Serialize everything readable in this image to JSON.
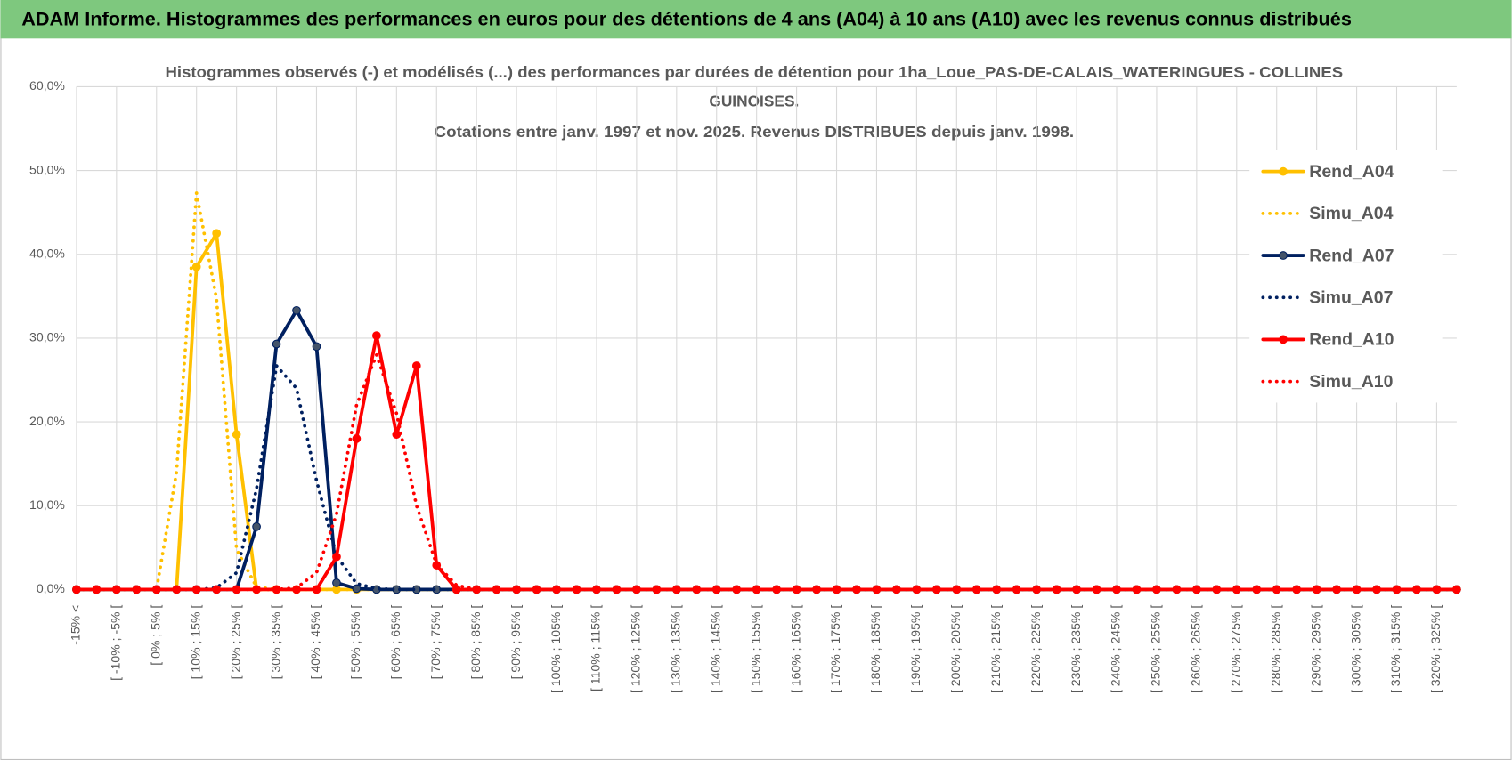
{
  "header": {
    "title": "ADAM Informe. Histogrammes des performances en euros pour des détentions de 4 ans (A04) à 10 ans (A10) avec les revenus connus distribués"
  },
  "chart_data": {
    "type": "line",
    "title": [
      "Histogrammes observés (-) et modélisés (...) des performances par durées de détention pour 1ha_Loue_PAS-DE-CALAIS_WATERINGUES - COLLINES",
      "GUINOISES."
    ],
    "subtitle": "Cotations entre janv. 1997 et nov. 2025. Revenus DISTRIBUES depuis janv. 1998.",
    "categories": [
      "-15% <",
      null,
      "[ -10% ; -5% [",
      null,
      "[ 0% ; 5% [",
      null,
      "[ 10% ; 15% [",
      null,
      "[ 20% ; 25% [",
      null,
      "[ 30% ; 35% [",
      null,
      "[ 40% ; 45% [",
      null,
      "[ 50% ; 55% [",
      null,
      "[ 60% ; 65% [",
      null,
      "[ 70% ; 75% [",
      null,
      "[ 80% ; 85% [",
      null,
      "[ 90% ; 95% [",
      null,
      "[ 100% ; 105% [",
      null,
      "[ 110% ; 115% [",
      null,
      "[ 120% ; 125% [",
      null,
      "[ 130% ; 135% [",
      null,
      "[ 140% ; 145% [",
      null,
      "[ 150% ; 155% [",
      null,
      "[ 160% ; 165% [",
      null,
      "[ 170% ; 175% [",
      null,
      "[ 180% ; 185% [",
      null,
      "[ 190% ; 195% [",
      null,
      "[ 200% ; 205% [",
      null,
      "[ 210% ; 215% [",
      null,
      "[ 220% ; 225% [",
      null,
      "[ 230% ; 235% [",
      null,
      "[ 240% ; 245% [",
      null,
      "[ 250% ; 255% [",
      null,
      "[ 260% ; 265% [",
      null,
      "[ 270% ; 275% [",
      null,
      "[ 280% ; 285% [",
      null,
      "[ 290% ; 295% [",
      null,
      "[ 300% ; 305% [",
      null,
      "[ 310% ; 315% [",
      null,
      "[ 320% ; 325% [",
      null
    ],
    "series": [
      {
        "name": "Rend_A04",
        "color": "#FFC000",
        "dashed": false,
        "markers": true,
        "values": [
          0,
          0,
          0,
          0,
          0,
          0,
          38.5,
          42.5,
          18.5,
          0,
          0,
          0,
          0,
          0,
          0,
          0,
          0,
          0,
          0,
          0,
          0,
          0,
          0,
          0,
          0,
          0,
          0,
          0,
          0,
          0,
          0,
          0,
          0,
          0,
          0,
          0,
          0,
          0,
          0,
          0,
          0,
          0,
          0,
          0,
          0,
          0,
          0,
          0,
          0,
          0,
          0,
          0,
          0,
          0,
          0,
          0,
          0,
          0,
          0,
          0,
          0,
          0,
          0,
          0,
          0,
          0,
          0,
          0,
          0,
          0
        ]
      },
      {
        "name": "Simu_A04",
        "color": "#FFC000",
        "dashed": true,
        "markers": false,
        "values": [
          0,
          0,
          0,
          0,
          0,
          14,
          47.3,
          34.7,
          4.8,
          0.3,
          0,
          0,
          0,
          0,
          0,
          0,
          0,
          0,
          0,
          0,
          0,
          0,
          0,
          0,
          0,
          0,
          0,
          0,
          0,
          0,
          0,
          0,
          0,
          0,
          0,
          0,
          0,
          0,
          0,
          0,
          0,
          0,
          0,
          0,
          0,
          0,
          0,
          0,
          0,
          0,
          0,
          0,
          0,
          0,
          0,
          0,
          0,
          0,
          0,
          0,
          0,
          0,
          0,
          0,
          0,
          0,
          0,
          0,
          0,
          0
        ]
      },
      {
        "name": "Rend_A07",
        "color": "#002060",
        "dashed": false,
        "markers": true,
        "values": [
          0,
          0,
          0,
          0,
          0,
          0,
          0,
          0,
          0,
          7.5,
          29.3,
          33.3,
          29,
          0.8,
          0.1,
          0,
          0,
          0,
          0,
          0,
          0,
          0,
          0,
          0,
          0,
          0,
          0,
          0,
          0,
          0,
          0,
          0,
          0,
          0,
          0,
          0,
          0,
          0,
          0,
          0,
          0,
          0,
          0,
          0,
          0,
          0,
          0,
          0,
          0,
          0,
          0,
          0,
          0,
          0,
          0,
          0,
          0,
          0,
          0,
          0,
          0,
          0,
          0,
          0,
          0,
          0,
          0,
          0,
          0,
          0
        ]
      },
      {
        "name": "Simu_A07",
        "color": "#002060",
        "dashed": true,
        "markers": false,
        "values": [
          0,
          0,
          0,
          0,
          0,
          0,
          0,
          0.2,
          2,
          12,
          26.7,
          24,
          13,
          4,
          0.7,
          0.1,
          0,
          0,
          0,
          0,
          0,
          0,
          0,
          0,
          0,
          0,
          0,
          0,
          0,
          0,
          0,
          0,
          0,
          0,
          0,
          0,
          0,
          0,
          0,
          0,
          0,
          0,
          0,
          0,
          0,
          0,
          0,
          0,
          0,
          0,
          0,
          0,
          0,
          0,
          0,
          0,
          0,
          0,
          0,
          0,
          0,
          0,
          0,
          0,
          0,
          0,
          0,
          0,
          0,
          0
        ]
      },
      {
        "name": "Rend_A10",
        "color": "#FF0000",
        "dashed": false,
        "markers": true,
        "values": [
          0,
          0,
          0,
          0,
          0,
          0,
          0,
          0,
          0,
          0,
          0,
          0,
          0,
          3.9,
          18,
          30.3,
          18.5,
          26.7,
          2.9,
          0,
          0,
          0,
          0,
          0,
          0,
          0,
          0,
          0,
          0,
          0,
          0,
          0,
          0,
          0,
          0,
          0,
          0,
          0,
          0,
          0,
          0,
          0,
          0,
          0,
          0,
          0,
          0,
          0,
          0,
          0,
          0,
          0,
          0,
          0,
          0,
          0,
          0,
          0,
          0,
          0,
          0,
          0,
          0,
          0,
          0,
          0,
          0,
          0,
          0,
          0
        ]
      },
      {
        "name": "Simu_A10",
        "color": "#FF0000",
        "dashed": true,
        "markers": false,
        "values": [
          0,
          0,
          0,
          0,
          0,
          0,
          0,
          0,
          0,
          0,
          0,
          0.2,
          2,
          9,
          22,
          28,
          21,
          10,
          3,
          0.5,
          0,
          0,
          0,
          0,
          0,
          0,
          0,
          0,
          0,
          0,
          0,
          0,
          0,
          0,
          0,
          0,
          0,
          0,
          0,
          0,
          0,
          0,
          0,
          0,
          0,
          0,
          0,
          0,
          0,
          0,
          0,
          0,
          0,
          0,
          0,
          0,
          0,
          0,
          0,
          0,
          0,
          0,
          0,
          0,
          0,
          0,
          0,
          0,
          0,
          0
        ]
      }
    ],
    "ylim": [
      0,
      60
    ],
    "yticks": [
      {
        "value": 0,
        "label": "0,0%"
      },
      {
        "value": 10,
        "label": "10,0%"
      },
      {
        "value": 20,
        "label": "20,0%"
      },
      {
        "value": 30,
        "label": "30,0%"
      },
      {
        "value": 40,
        "label": "40,0%"
      },
      {
        "value": 50,
        "label": "50,0%"
      },
      {
        "value": 60,
        "label": "60,0%"
      }
    ],
    "grid": true,
    "legend": "right"
  }
}
